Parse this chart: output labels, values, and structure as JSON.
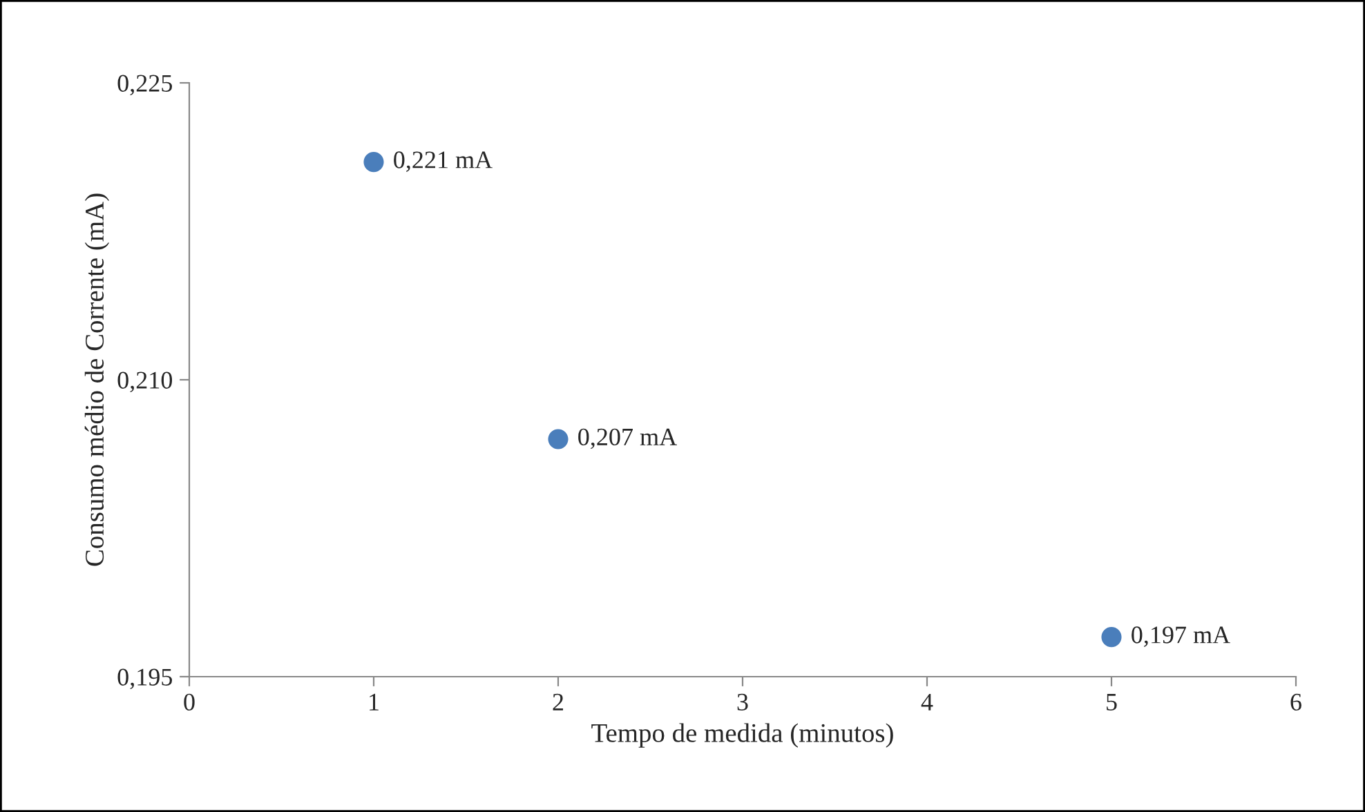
{
  "chart_data": {
    "type": "scatter",
    "xlabel": "Tempo de medida (minutos)",
    "ylabel": "Consumo médio de Corrente (mA)",
    "x": [
      1,
      2,
      5
    ],
    "values": [
      0.221,
      0.207,
      0.197
    ],
    "value_labels": [
      "0,221 mA",
      "0,207 mA",
      "0,197 mA"
    ],
    "color": "#4a7ebb",
    "marker": "circle",
    "xlim": [
      0,
      6
    ],
    "xticks": [
      0,
      1,
      2,
      3,
      4,
      5,
      6
    ],
    "ylim": [
      0.195,
      0.225
    ],
    "yticks": [
      {
        "value": 0.195,
        "label": "0,195"
      },
      {
        "value": 0.21,
        "label": "0,210"
      },
      {
        "value": 0.225,
        "label": "0,225"
      }
    ],
    "grid": false,
    "legend": false
  }
}
